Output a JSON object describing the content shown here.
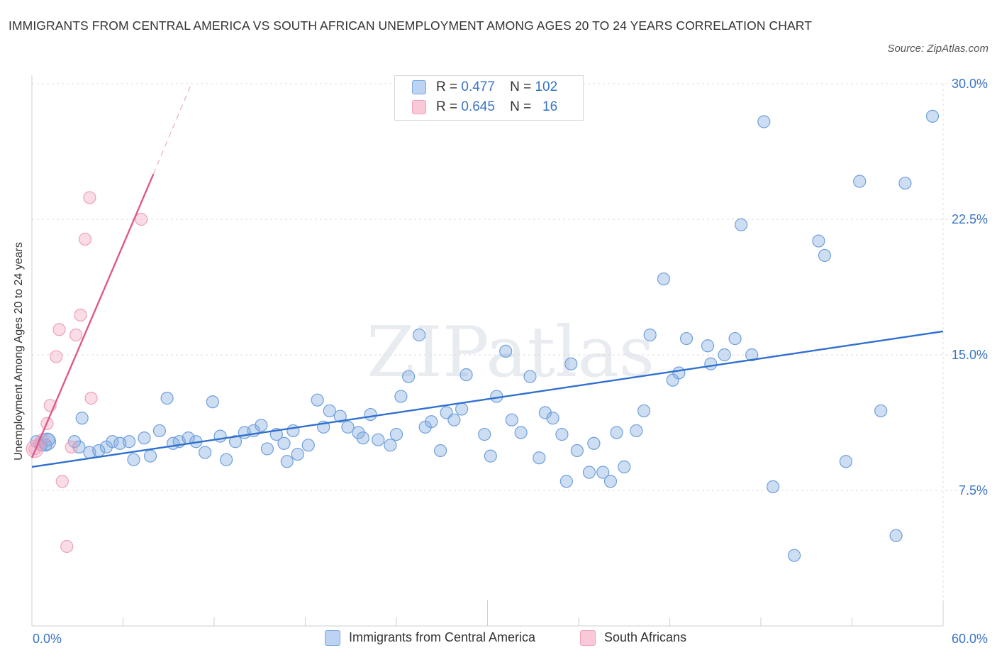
{
  "chart_data": {
    "type": "scatter",
    "title": "IMMIGRANTS FROM CENTRAL AMERICA VS SOUTH AFRICAN UNEMPLOYMENT AMONG AGES 20 TO 24 YEARS CORRELATION CHART",
    "source": "Source: ZipAtlas.com",
    "watermark": "ZIPatlas",
    "xlabel": "",
    "ylabel": "Unemployment Among Ages 20 to 24 years",
    "xlim": [
      0,
      60
    ],
    "ylim": [
      0,
      30
    ],
    "x_tick_labels": {
      "min": "0.0%",
      "max": "60.0%"
    },
    "y_ticks": [
      {
        "value": 7.5,
        "label": "7.5%"
      },
      {
        "value": 15,
        "label": "15.0%"
      },
      {
        "value": 22.5,
        "label": "22.5%"
      },
      {
        "value": 30,
        "label": "30.0%"
      }
    ],
    "legend_stats": [
      {
        "r_label": "R =",
        "r": "0.477",
        "n_label": "N =",
        "n": "102"
      },
      {
        "r_label": "R =",
        "r": "0.645",
        "n_label": "N =",
        "n": "16"
      }
    ],
    "series": [
      {
        "name": "Immigrants from Central America",
        "color": "#7ba7e0",
        "line_color": "#2f6fce",
        "trend": {
          "x0": 0,
          "y0": 8.8,
          "x1": 60,
          "y1": 16.3
        },
        "points": [
          [
            0.3,
            10.2
          ],
          [
            0.6,
            10.0
          ],
          [
            0.9,
            10.0
          ],
          [
            1.1,
            10.3
          ],
          [
            3.1,
            9.9
          ],
          [
            2.8,
            10.2
          ],
          [
            3.3,
            11.5
          ],
          [
            3.8,
            9.6
          ],
          [
            4.4,
            9.7
          ],
          [
            4.9,
            9.9
          ],
          [
            5.3,
            10.2
          ],
          [
            5.8,
            10.1
          ],
          [
            6.4,
            10.2
          ],
          [
            6.7,
            9.2
          ],
          [
            7.4,
            10.4
          ],
          [
            7.8,
            9.4
          ],
          [
            8.4,
            10.8
          ],
          [
            8.9,
            12.6
          ],
          [
            9.3,
            10.1
          ],
          [
            9.7,
            10.2
          ],
          [
            10.3,
            10.4
          ],
          [
            10.8,
            10.2
          ],
          [
            11.4,
            9.6
          ],
          [
            11.9,
            12.4
          ],
          [
            12.4,
            10.5
          ],
          [
            12.8,
            9.2
          ],
          [
            13.4,
            10.2
          ],
          [
            14.0,
            10.7
          ],
          [
            14.6,
            10.8
          ],
          [
            15.1,
            11.1
          ],
          [
            15.5,
            9.8
          ],
          [
            16.1,
            10.6
          ],
          [
            16.6,
            10.1
          ],
          [
            16.8,
            9.1
          ],
          [
            17.5,
            9.5
          ],
          [
            17.2,
            10.8
          ],
          [
            18.2,
            10.0
          ],
          [
            18.8,
            12.5
          ],
          [
            19.2,
            11.0
          ],
          [
            19.6,
            11.9
          ],
          [
            20.3,
            11.6
          ],
          [
            20.8,
            11.0
          ],
          [
            21.5,
            10.7
          ],
          [
            21.8,
            10.4
          ],
          [
            22.3,
            11.7
          ],
          [
            22.8,
            10.3
          ],
          [
            23.6,
            10.0
          ],
          [
            24.0,
            10.6
          ],
          [
            24.3,
            12.7
          ],
          [
            24.8,
            13.8
          ],
          [
            25.5,
            16.1
          ],
          [
            25.9,
            11.0
          ],
          [
            26.3,
            11.3
          ],
          [
            26.9,
            9.7
          ],
          [
            27.3,
            11.8
          ],
          [
            27.8,
            11.4
          ],
          [
            28.3,
            12.0
          ],
          [
            28.6,
            13.9
          ],
          [
            29.8,
            10.6
          ],
          [
            30.2,
            9.4
          ],
          [
            30.6,
            12.7
          ],
          [
            31.2,
            15.2
          ],
          [
            31.6,
            11.4
          ],
          [
            32.2,
            10.7
          ],
          [
            32.8,
            13.8
          ],
          [
            33.4,
            9.3
          ],
          [
            33.8,
            11.8
          ],
          [
            34.3,
            11.5
          ],
          [
            34.9,
            10.6
          ],
          [
            35.5,
            14.5
          ],
          [
            35.2,
            8.0
          ],
          [
            35.9,
            9.7
          ],
          [
            36.7,
            8.5
          ],
          [
            37.0,
            10.1
          ],
          [
            37.6,
            8.5
          ],
          [
            38.1,
            8.0
          ],
          [
            38.5,
            10.7
          ],
          [
            39.0,
            8.8
          ],
          [
            39.8,
            10.8
          ],
          [
            40.3,
            11.9
          ],
          [
            40.7,
            16.1
          ],
          [
            41.6,
            19.2
          ],
          [
            42.2,
            13.6
          ],
          [
            42.6,
            14.0
          ],
          [
            43.1,
            15.9
          ],
          [
            44.5,
            15.5
          ],
          [
            44.7,
            14.5
          ],
          [
            45.6,
            15.0
          ],
          [
            46.3,
            15.9
          ],
          [
            46.7,
            22.2
          ],
          [
            47.4,
            15.0
          ],
          [
            48.2,
            27.9
          ],
          [
            48.8,
            7.7
          ],
          [
            50.2,
            3.9
          ],
          [
            51.8,
            21.3
          ],
          [
            52.2,
            20.5
          ],
          [
            53.6,
            9.1
          ],
          [
            54.5,
            24.6
          ],
          [
            55.9,
            11.9
          ],
          [
            56.9,
            5.0
          ],
          [
            57.5,
            24.5
          ],
          [
            59.3,
            28.2
          ]
        ]
      },
      {
        "name": "South Africans",
        "color": "#f0a2bc",
        "line_color": "#e0588c",
        "trend": {
          "x0": 0,
          "y0": 9.3,
          "x1": 8.0,
          "y1": 25.0
        },
        "trend_ext": {
          "x0": 8.0,
          "y0": 25.0,
          "x1": 10.5,
          "y1": 30.0
        },
        "points": [
          [
            0.2,
            9.8
          ],
          [
            0.5,
            10.1
          ],
          [
            0.7,
            10.3
          ],
          [
            1.0,
            11.2
          ],
          [
            1.2,
            12.2
          ],
          [
            1.6,
            14.9
          ],
          [
            1.8,
            16.4
          ],
          [
            2.0,
            8.0
          ],
          [
            2.3,
            4.4
          ],
          [
            2.6,
            9.9
          ],
          [
            2.9,
            16.1
          ],
          [
            3.2,
            17.2
          ],
          [
            3.5,
            21.4
          ],
          [
            3.8,
            23.7
          ],
          [
            3.9,
            12.6
          ],
          [
            7.2,
            22.5
          ]
        ]
      }
    ]
  }
}
